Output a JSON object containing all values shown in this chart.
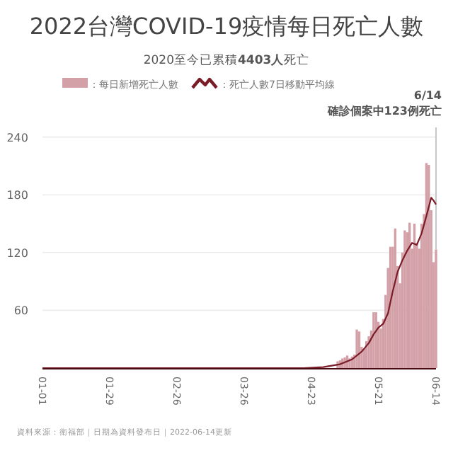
{
  "chart_data": {
    "type": "bar",
    "title": "2022台灣COVID-19疫情每日死亡人數",
    "subtitle": "2020至今已累積**4403人**死亡",
    "annotations": [
      "資料來源：衛福部｜日期為資料發布日｜2022-06-14更新"
    ],
    "x": [
      "--05-04",
      "--05-05",
      "--05-06",
      "--05-07",
      "--05-08",
      "--05-09",
      "--05-10",
      "--05-11",
      "--05-12",
      "--05-13",
      "--05-14",
      "--05-15",
      "--05-16",
      "--05-17",
      "--05-18",
      "--05-19",
      "--05-20",
      "--05-21",
      "--05-22",
      "--05-23",
      "--05-24",
      "--05-25",
      "--05-26",
      "--05-27",
      "--05-28",
      "--05-29",
      "--05-30",
      "--05-31",
      "--06-01",
      "--06-02",
      "--06-03",
      "--06-04",
      "--06-05",
      "--06-06",
      "--06-07",
      "--06-08",
      "--06-09",
      "--06-10",
      "--06-11",
      "--06-12",
      "--06-13",
      "--06-14"
    ],
    "series": [
      {
        "name": "：每日新增死亡人數",
        "color": "#d4a0a7",
        "values": [
          7,
          8,
          10,
          11,
          13,
          10,
          12,
          14,
          40,
          38,
          22,
          20,
          28,
          33,
          39,
          58,
          58,
          48,
          41,
          51,
          76,
          104,
          126,
          126,
          145,
          106,
          88,
          120,
          143,
          141,
          151,
          124,
          150,
          130,
          124,
          150,
          160,
          213,
          211,
          164,
          110,
          123
        ]
      },
      {
        "name": "：死亡人數7日移動平均線",
        "type": "line",
        "color": "#7a1c28",
        "x": [
          "--01-01",
          "--02-01",
          "--03-01",
          "--04-01",
          "--04-20",
          "--04-28",
          "--05-05",
          "--05-10",
          "--05-14",
          "--05-17",
          "--05-19",
          "--05-21",
          "--05-23",
          "--05-25",
          "--05-27",
          "--05-29",
          "--05-31",
          "--06-02",
          "--06-04",
          "--06-06",
          "--06-08",
          "--06-10",
          "--06-12",
          "--06-13",
          "--06-14"
        ],
        "values": [
          0,
          0,
          0,
          0,
          0,
          1,
          4,
          9,
          17,
          26,
          35,
          42,
          46,
          57,
          80,
          100,
          112,
          122,
          130,
          128,
          140,
          158,
          177,
          174,
          170
        ]
      }
    ],
    "xlim": [
      "--01-01",
      "--06-14"
    ],
    "xticks": [
      {
        "value": "--01-01",
        "label": "01-01"
      },
      {
        "value": "--01-29",
        "label": "01-29"
      },
      {
        "value": "--02-26",
        "label": "02-26"
      },
      {
        "value": "--03-26",
        "label": "03-26"
      },
      {
        "value": "--04-23",
        "label": "04-23"
      },
      {
        "value": "--05-21",
        "label": "05-21"
      },
      {
        "value": "--06-14",
        "label": "06-14"
      }
    ],
    "ylim": [
      0,
      250
    ],
    "yticks": [
      60,
      120,
      180,
      240
    ],
    "ref_lines": [
      {
        "axis": "x",
        "value": "--06-14",
        "label": "6/14\n確診個案中123例死亡",
        "color": "#c8c8c8"
      }
    ],
    "grid": "y",
    "legend": "top",
    "marker": "none"
  }
}
